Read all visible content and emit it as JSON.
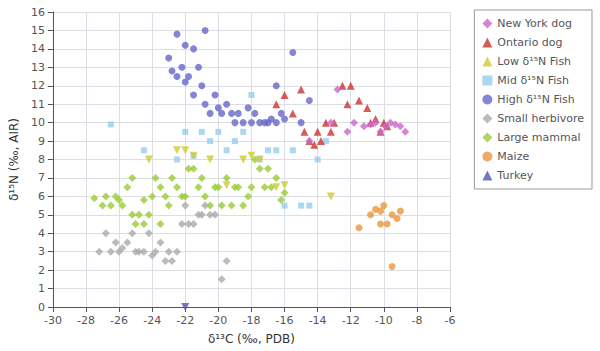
{
  "chart_data": {
    "type": "scatter",
    "xlabel": "δ¹³C (‰, PDB)",
    "ylabel": "δ¹⁵N (‰, AIR)",
    "xlim": [
      -30,
      -6
    ],
    "ylim": [
      0,
      16
    ],
    "xticks": [
      -30,
      -28,
      -26,
      -24,
      -22,
      -20,
      -18,
      -16,
      -14,
      -12,
      -10,
      -8,
      -6
    ],
    "yticks": [
      0,
      1,
      2,
      3,
      4,
      5,
      6,
      7,
      8,
      9,
      10,
      11,
      12,
      13,
      14,
      15,
      16
    ],
    "grid": true,
    "legend": "upper right",
    "series": [
      {
        "name": "New York dog",
        "color": "#CC66CC",
        "marker": "diamond",
        "x": [
          -14.5,
          -13.2,
          -12.8,
          -12.2,
          -11.8,
          -11.2,
          -10.8,
          -10.5,
          -10.2,
          -9.9,
          -9.6,
          -9.3,
          -9.0,
          -8.7
        ],
        "y": [
          9.0,
          10.0,
          11.8,
          9.5,
          10.0,
          9.8,
          9.9,
          10.0,
          9.5,
          9.8,
          10.0,
          9.9,
          9.8,
          9.5
        ]
      },
      {
        "name": "Ontario dog",
        "color": "#CC3333",
        "marker": "triangle_up",
        "x": [
          -16.5,
          -16.0,
          -15.5,
          -15.0,
          -14.8,
          -14.5,
          -14.2,
          -14.0,
          -13.8,
          -13.5,
          -13.2,
          -13.0,
          -12.5,
          -12.2,
          -12.0,
          -11.5,
          -11.0,
          -10.8,
          -10.5,
          -10.2,
          -10.0,
          -9.8
        ],
        "y": [
          11.0,
          11.5,
          10.5,
          11.8,
          9.5,
          9.0,
          8.8,
          9.5,
          9.0,
          10.0,
          9.5,
          10.0,
          12.0,
          11.0,
          12.0,
          11.2,
          10.8,
          10.0,
          10.2,
          9.5,
          10.0,
          9.8
        ]
      },
      {
        "name": "Low δ¹⁵N Fish",
        "color": "#CCCC33",
        "marker": "triangle_down",
        "x": [
          -24.2,
          -22.5,
          -22.0,
          -21.5,
          -20.5,
          -19.5,
          -18.5,
          -18.0,
          -17.5,
          -16.5,
          -16.0,
          -13.2
        ],
        "y": [
          8.0,
          8.5,
          8.5,
          8.2,
          8.0,
          6.6,
          8.0,
          8.2,
          8.0,
          6.5,
          6.6,
          6.0
        ]
      },
      {
        "name": "Mid δ¹⁵N Fish",
        "color": "#99CCEE",
        "marker": "square",
        "x": [
          -26.5,
          -24.5,
          -22.5,
          -22.0,
          -21.5,
          -21.0,
          -20.5,
          -20.0,
          -19.5,
          -19.0,
          -18.5,
          -18.0,
          -17.5,
          -17.0,
          -16.5,
          -16.0,
          -15.5,
          -15.0,
          -14.5,
          -14.0,
          -13.5
        ],
        "y": [
          9.9,
          8.5,
          8.0,
          9.5,
          8.2,
          9.5,
          9.0,
          9.5,
          8.5,
          9.0,
          9.5,
          11.5,
          8.0,
          8.5,
          8.5,
          5.5,
          8.5,
          5.5,
          5.5,
          8.0,
          9.0
        ]
      },
      {
        "name": "High δ¹⁵N Fish",
        "color": "#6666CC",
        "marker": "circle",
        "x": [
          -23.0,
          -22.8,
          -22.5,
          -22.2,
          -22.0,
          -21.8,
          -21.5,
          -21.2,
          -21.0,
          -20.8,
          -20.5,
          -20.2,
          -20.0,
          -19.8,
          -19.5,
          -19.2,
          -19.0,
          -18.8,
          -18.5,
          -18.2,
          -18.0,
          -17.8,
          -17.5,
          -17.2,
          -17.0,
          -16.8,
          -16.5,
          -16.2,
          -16.0,
          -15.5,
          -15.0,
          -22.5,
          -22.0,
          -21.5,
          -20.8,
          -14.5,
          -16.5
        ],
        "y": [
          13.5,
          12.8,
          12.5,
          13.0,
          12.2,
          12.5,
          11.5,
          13.0,
          12.0,
          11.0,
          10.5,
          11.5,
          10.8,
          10.5,
          11.0,
          10.5,
          10.0,
          10.5,
          10.0,
          10.8,
          10.0,
          10.5,
          10.0,
          10.0,
          10.0,
          10.2,
          10.0,
          10.5,
          10.2,
          13.8,
          10.0,
          14.8,
          14.2,
          14.0,
          15.0,
          11.2,
          12.0
        ]
      },
      {
        "name": "Small herbivore",
        "color": "#AAAAAA",
        "marker": "diamond",
        "x": [
          -27.2,
          -26.8,
          -26.5,
          -26.2,
          -26.0,
          -25.8,
          -25.5,
          -25.2,
          -25.0,
          -24.8,
          -24.5,
          -24.2,
          -24.0,
          -23.8,
          -23.5,
          -23.2,
          -23.0,
          -22.8,
          -22.5,
          -22.2,
          -22.0,
          -21.8,
          -21.5,
          -21.2,
          -21.0,
          -20.8,
          -20.5,
          -20.2,
          -19.8,
          -19.5
        ],
        "y": [
          3.0,
          4.0,
          3.0,
          3.5,
          3.0,
          3.2,
          3.5,
          4.0,
          3.0,
          3.0,
          3.0,
          4.0,
          2.8,
          3.0,
          3.5,
          2.5,
          3.0,
          2.5,
          3.0,
          4.5,
          5.5,
          4.5,
          4.5,
          5.0,
          5.0,
          5.5,
          5.0,
          5.0,
          1.5,
          2.5
        ]
      },
      {
        "name": "Large mammal",
        "color": "#99CC33",
        "marker": "diamond",
        "x": [
          -27.5,
          -27.0,
          -26.8,
          -26.5,
          -26.2,
          -26.0,
          -25.8,
          -25.5,
          -25.2,
          -25.0,
          -24.8,
          -24.5,
          -24.2,
          -24.0,
          -23.8,
          -23.5,
          -23.2,
          -23.0,
          -22.8,
          -22.5,
          -22.2,
          -22.0,
          -21.8,
          -21.5,
          -21.2,
          -21.0,
          -20.8,
          -20.5,
          -20.2,
          -20.0,
          -19.8,
          -19.5,
          -19.2,
          -19.0,
          -18.8,
          -18.5,
          -18.2,
          -18.0,
          -17.8,
          -17.5,
          -17.2,
          -17.0,
          -16.8,
          -16.5,
          -16.2,
          -16.0,
          -23.5,
          -24.5,
          -25.2
        ],
        "y": [
          5.9,
          5.5,
          6.0,
          5.5,
          6.0,
          5.8,
          5.5,
          6.5,
          5.0,
          4.5,
          5.0,
          4.5,
          5.0,
          6.0,
          7.0,
          6.5,
          6.0,
          5.5,
          7.0,
          6.5,
          6.0,
          6.0,
          7.5,
          7.5,
          6.5,
          7.0,
          6.0,
          5.5,
          6.5,
          6.5,
          5.5,
          7.0,
          5.5,
          6.5,
          6.5,
          5.5,
          6.0,
          6.5,
          8.0,
          7.5,
          6.5,
          7.5,
          6.5,
          7.0,
          5.8,
          6.2,
          4.5,
          5.8,
          7.0
        ]
      },
      {
        "name": "Maize",
        "color": "#E8973A",
        "marker": "circle",
        "x": [
          -11.5,
          -10.8,
          -10.5,
          -10.2,
          -10.0,
          -9.8,
          -9.5,
          -9.2,
          -9.0,
          -9.5,
          -10.2
        ],
        "y": [
          4.3,
          5.0,
          5.3,
          5.2,
          5.5,
          4.5,
          5.0,
          4.8,
          5.2,
          2.2,
          4.5
        ]
      },
      {
        "name": "Turkey",
        "color": "#5555AA",
        "marker": "triangle_down",
        "x": [
          -22.0
        ],
        "y": [
          0.0
        ]
      }
    ]
  }
}
